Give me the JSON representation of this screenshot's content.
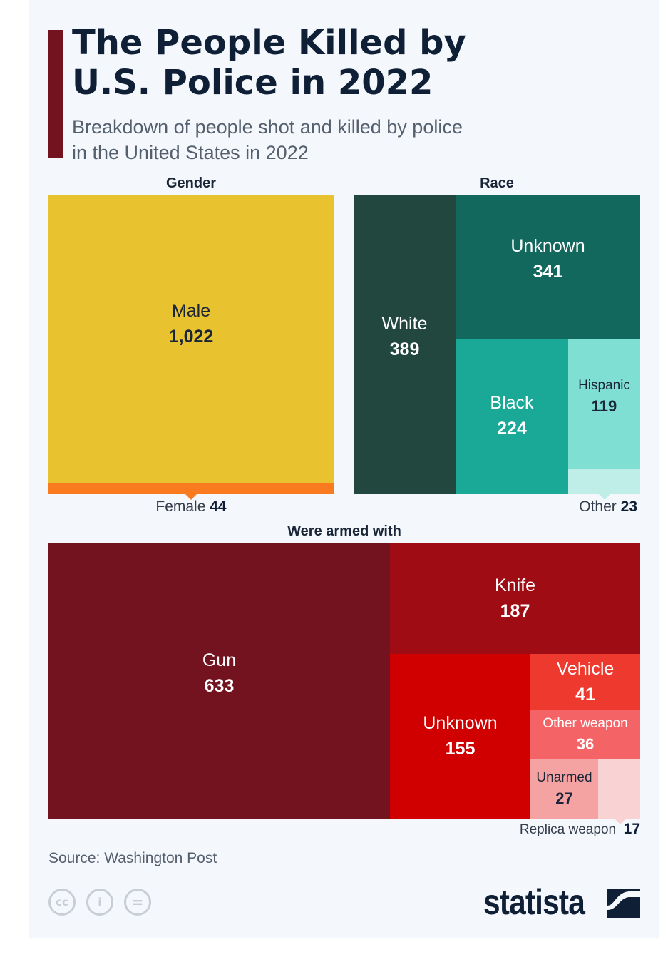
{
  "title": "The People Killed by U.S. Police in 2022",
  "subtitle": "Breakdown of people shot and killed by police in the United States in 2022",
  "source": "Source: Washington Post",
  "brand": "statista",
  "chart_data": [
    {
      "type": "treemap",
      "title": "Gender",
      "items": [
        {
          "label": "Male",
          "value": "1,022",
          "color": "#e9c22f"
        },
        {
          "label": "Female",
          "value": "44",
          "color": "#f97a1f"
        }
      ]
    },
    {
      "type": "treemap",
      "title": "Race",
      "items": [
        {
          "label": "White",
          "value": "389",
          "color": "#22473f"
        },
        {
          "label": "Unknown",
          "value": "341",
          "color": "#13685e"
        },
        {
          "label": "Black",
          "value": "224",
          "color": "#1aa897"
        },
        {
          "label": "Hispanic",
          "value": "119",
          "color": "#7fdfd3"
        },
        {
          "label": "Other",
          "value": "23",
          "color": "#bfeee8"
        }
      ]
    },
    {
      "type": "treemap",
      "title": "Were armed with",
      "items": [
        {
          "label": "Gun",
          "value": "633",
          "color": "#72131f"
        },
        {
          "label": "Knife",
          "value": "187",
          "color": "#a00c14"
        },
        {
          "label": "Unknown",
          "value": "155",
          "color": "#d00000"
        },
        {
          "label": "Vehicle",
          "value": "41",
          "color": "#ee3a2e"
        },
        {
          "label": "Other weapon",
          "value": "36",
          "color": "#f46466"
        },
        {
          "label": "Unarmed",
          "value": "27",
          "color": "#f4a2a2"
        },
        {
          "label": "Replica weapon",
          "value": "17",
          "color": "#f9d3d3"
        }
      ]
    }
  ]
}
